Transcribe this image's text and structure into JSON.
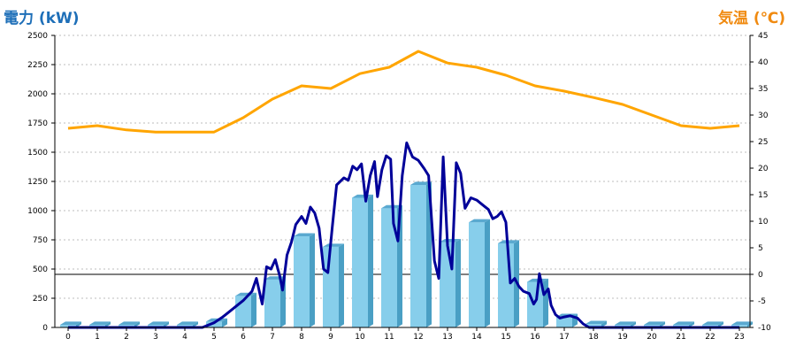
{
  "chart_data": {
    "type": "bar",
    "title_left": "電力 (kW)",
    "title_right": "気温 (℃)",
    "colors": {
      "bar_face": "#87CEEB",
      "bar_side": "#4A9FC4",
      "bar_top": "#5AA9D0",
      "power_line": "#000099",
      "temp_line": "#FFA500",
      "left_title": "#1E6FB8",
      "right_title": "#F08A10",
      "grid": "#BDBDBD",
      "zero_line": "#000000"
    },
    "grid": true,
    "categories": [
      "0",
      "1",
      "2",
      "3",
      "4",
      "5",
      "6",
      "7",
      "8",
      "9",
      "10",
      "11",
      "12",
      "13",
      "14",
      "15",
      "16",
      "17",
      "18",
      "19",
      "20",
      "21",
      "22",
      "23"
    ],
    "y_left": {
      "ylim": [
        0,
        2500
      ],
      "ticks": [
        "2500",
        "2250",
        "2000",
        "1750",
        "1500",
        "1250",
        "1000",
        "750",
        "500",
        "250",
        "0"
      ]
    },
    "y_right": {
      "ylim": [
        -10,
        45
      ],
      "ticks": [
        "45",
        "40",
        "35",
        "30",
        "25",
        "20",
        "15",
        "10",
        "5",
        "0",
        "-5",
        "-10"
      ]
    },
    "series": [
      {
        "kind": "bar_3d",
        "axis": "left",
        "values": [
          0,
          0,
          0,
          0,
          0,
          50,
          270,
          410,
          780,
          690,
          1110,
          1020,
          1220,
          730,
          900,
          720,
          390,
          90,
          30,
          0,
          0,
          0,
          0,
          0
        ]
      },
      {
        "kind": "line",
        "axis": "left",
        "points": [
          [
            0,
            0
          ],
          [
            1,
            0
          ],
          [
            2,
            0
          ],
          [
            3,
            0
          ],
          [
            4,
            0
          ],
          [
            4.6,
            0
          ],
          [
            5,
            40
          ],
          [
            5.3,
            90
          ],
          [
            5.6,
            150
          ],
          [
            6,
            230
          ],
          [
            6.3,
            310
          ],
          [
            6.45,
            420
          ],
          [
            6.65,
            200
          ],
          [
            6.8,
            520
          ],
          [
            6.95,
            500
          ],
          [
            7.1,
            580
          ],
          [
            7.25,
            440
          ],
          [
            7.35,
            320
          ],
          [
            7.5,
            620
          ],
          [
            7.65,
            730
          ],
          [
            7.8,
            880
          ],
          [
            8,
            950
          ],
          [
            8.15,
            890
          ],
          [
            8.3,
            1030
          ],
          [
            8.45,
            980
          ],
          [
            8.6,
            850
          ],
          [
            8.75,
            500
          ],
          [
            8.9,
            470
          ],
          [
            9.05,
            860
          ],
          [
            9.2,
            1220
          ],
          [
            9.45,
            1280
          ],
          [
            9.6,
            1260
          ],
          [
            9.75,
            1380
          ],
          [
            9.9,
            1350
          ],
          [
            10.05,
            1400
          ],
          [
            10.2,
            1080
          ],
          [
            10.35,
            1300
          ],
          [
            10.5,
            1420
          ],
          [
            10.6,
            1120
          ],
          [
            10.75,
            1350
          ],
          [
            10.9,
            1470
          ],
          [
            11.05,
            1440
          ],
          [
            11.15,
            890
          ],
          [
            11.3,
            740
          ],
          [
            11.45,
            1300
          ],
          [
            11.6,
            1580
          ],
          [
            11.8,
            1460
          ],
          [
            12,
            1430
          ],
          [
            12.2,
            1360
          ],
          [
            12.35,
            1300
          ],
          [
            12.55,
            570
          ],
          [
            12.7,
            420
          ],
          [
            12.85,
            1460
          ],
          [
            13.0,
            700
          ],
          [
            13.15,
            500
          ],
          [
            13.3,
            1410
          ],
          [
            13.45,
            1320
          ],
          [
            13.6,
            1020
          ],
          [
            13.8,
            1110
          ],
          [
            14.0,
            1090
          ],
          [
            14.2,
            1050
          ],
          [
            14.4,
            1010
          ],
          [
            14.55,
            930
          ],
          [
            14.7,
            950
          ],
          [
            14.85,
            990
          ],
          [
            15.0,
            900
          ],
          [
            15.15,
            380
          ],
          [
            15.3,
            420
          ],
          [
            15.45,
            350
          ],
          [
            15.6,
            310
          ],
          [
            15.8,
            290
          ],
          [
            15.95,
            200
          ],
          [
            16.05,
            240
          ],
          [
            16.15,
            460
          ],
          [
            16.3,
            280
          ],
          [
            16.45,
            330
          ],
          [
            16.55,
            190
          ],
          [
            16.7,
            110
          ],
          [
            16.85,
            80
          ],
          [
            17.0,
            90
          ],
          [
            17.2,
            100
          ],
          [
            17.45,
            80
          ],
          [
            17.65,
            30
          ],
          [
            17.85,
            0
          ],
          [
            18,
            0
          ],
          [
            19,
            0
          ],
          [
            20,
            0
          ],
          [
            21,
            0
          ],
          [
            22,
            0
          ],
          [
            23,
            0
          ]
        ]
      },
      {
        "kind": "line",
        "axis": "right",
        "points": [
          [
            0,
            27.5
          ],
          [
            1,
            28
          ],
          [
            2,
            27.2
          ],
          [
            3,
            26.8
          ],
          [
            4,
            26.8
          ],
          [
            5,
            26.8
          ],
          [
            6,
            29.5
          ],
          [
            7,
            33
          ],
          [
            8,
            35.5
          ],
          [
            9,
            35
          ],
          [
            10,
            37.8
          ],
          [
            11,
            39
          ],
          [
            12,
            42
          ],
          [
            13,
            39.8
          ],
          [
            14,
            39
          ],
          [
            15,
            37.5
          ],
          [
            16,
            35.5
          ],
          [
            17,
            34.5
          ],
          [
            18,
            33.3
          ],
          [
            19,
            32
          ],
          [
            20,
            30
          ],
          [
            21,
            28
          ],
          [
            22,
            27.5
          ],
          [
            23,
            28
          ]
        ]
      }
    ]
  }
}
